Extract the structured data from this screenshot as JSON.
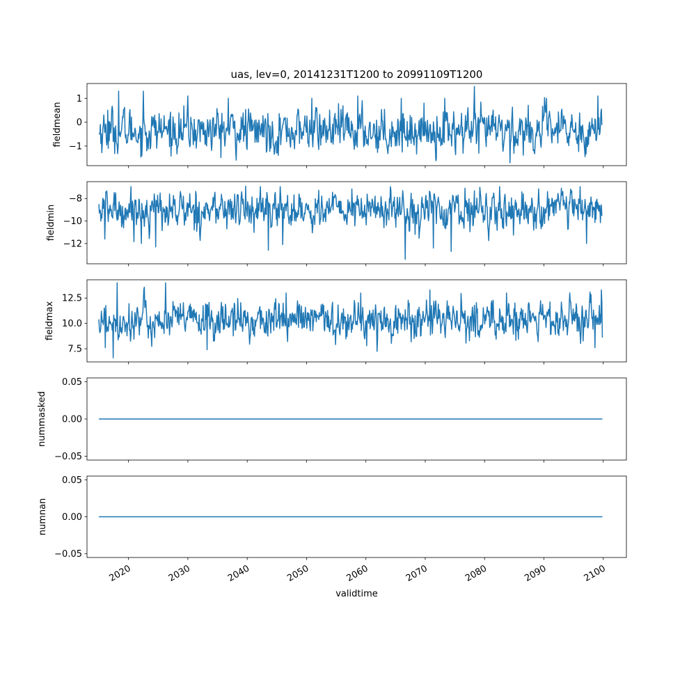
{
  "figure": {
    "title": "uas, lev=0, 20141231T1200 to 20991109T1200",
    "xlabel": "validtime"
  },
  "colors": {
    "line": "#1f77b4",
    "axes": "#000000",
    "background": "#ffffff"
  },
  "chart_data": [
    {
      "type": "line",
      "panel": "fieldmean",
      "ylabel": "fieldmean",
      "x_range": [
        "2014-12-31",
        "2099-11-09"
      ],
      "xlim_years": [
        2013.0,
        2103.9
      ],
      "ylim": [
        -1.82,
        1.62
      ],
      "yticks": [
        1,
        0,
        -1
      ],
      "ytick_labels": [
        "1",
        "0",
        "−1"
      ],
      "xticks": [
        2020,
        2030,
        2040,
        2050,
        2060,
        2070,
        2080,
        2090,
        2100
      ],
      "xtick_labels": [
        "2020",
        "2030",
        "2040",
        "2050",
        "2060",
        "2070",
        "2080",
        "2090",
        "2100"
      ],
      "xtick_labels_visible": false,
      "series": [
        {
          "summary": "noisy monthly series, mostly between -1.2 and 0.8",
          "x": [
            2015.0,
            2016.5,
            2016.6,
            2018.3,
            2022.5,
            2023.1,
            2030.0,
            2036.8,
            2045.0,
            2050.9,
            2058.6,
            2066.0,
            2073.3,
            2076.4,
            2078.3,
            2079.0,
            2084.3,
            2090.4,
            2099.1,
            2099.8
          ],
          "y": [
            -0.5,
            0.5,
            -1.1,
            1.3,
            1.3,
            -1.2,
            1.1,
            1.0,
            -1.3,
            1.0,
            1.1,
            1.0,
            1.0,
            -1.3,
            1.5,
            -1.3,
            -1.7,
            1.0,
            1.1,
            -0.1
          ]
        }
      ]
    },
    {
      "type": "line",
      "panel": "fieldmin",
      "ylabel": "fieldmin",
      "x_range": [
        "2014-12-31",
        "2099-11-09"
      ],
      "xlim_years": [
        2013.0,
        2103.9
      ],
      "ylim": [
        -13.8,
        -6.5
      ],
      "yticks": [
        -8,
        -10,
        -12
      ],
      "ytick_labels": [
        "−8",
        "−10",
        "−12"
      ],
      "xticks": [
        2020,
        2030,
        2040,
        2050,
        2060,
        2070,
        2080,
        2090,
        2100
      ],
      "xtick_labels": [
        "2020",
        "2030",
        "2040",
        "2050",
        "2060",
        "2070",
        "2080",
        "2090",
        "2100"
      ],
      "xtick_labels_visible": false,
      "series": [
        {
          "summary": "noisy monthly series, mostly between -10 and -8",
          "x": [
            2015.0,
            2016.0,
            2017.8,
            2022.2,
            2024.6,
            2039.7,
            2043.6,
            2046.0,
            2066.2,
            2066.6,
            2071.4,
            2074.4,
            2097.2,
            2099.6,
            2099.8
          ],
          "y": [
            -8.5,
            -11.6,
            -7.5,
            -12.0,
            -12.3,
            -6.9,
            -12.6,
            -12.1,
            -7.3,
            -13.4,
            -12.4,
            -12.7,
            -12.0,
            -9.2,
            -9.5
          ]
        }
      ]
    },
    {
      "type": "line",
      "panel": "fieldmax",
      "ylabel": "fieldmax",
      "x_range": [
        "2014-12-31",
        "2099-11-09"
      ],
      "xlim_years": [
        2013.0,
        2103.9
      ],
      "ylim": [
        6.2,
        14.3
      ],
      "yticks": [
        12.5,
        10.0,
        7.5
      ],
      "ytick_labels": [
        "12.5",
        "10.0",
        "7.5"
      ],
      "xticks": [
        2020,
        2030,
        2040,
        2050,
        2060,
        2070,
        2080,
        2090,
        2100
      ],
      "xtick_labels": [
        "2020",
        "2030",
        "2040",
        "2050",
        "2060",
        "2070",
        "2080",
        "2090",
        "2100"
      ],
      "xtick_labels_visible": false,
      "series": [
        {
          "summary": "noisy monthly series, mostly between 9 and 12",
          "x": [
            2015.0,
            2016.1,
            2017.4,
            2018.1,
            2026.2,
            2033.2,
            2046.6,
            2059.1,
            2060.1,
            2070.8,
            2083.7,
            2098.6,
            2099.7,
            2099.9
          ],
          "y": [
            10.4,
            7.6,
            6.6,
            14.0,
            14.0,
            7.4,
            13.0,
            13.0,
            7.8,
            13.3,
            13.0,
            7.6,
            13.3,
            8.6
          ]
        }
      ]
    },
    {
      "type": "line",
      "panel": "nummasked",
      "ylabel": "nummasked",
      "x_range": [
        "2014-12-31",
        "2099-11-09"
      ],
      "xlim_years": [
        2013.0,
        2103.9
      ],
      "ylim": [
        -0.055,
        0.055
      ],
      "yticks": [
        0.05,
        0.0,
        -0.05
      ],
      "ytick_labels": [
        "0.05",
        "0.00",
        "−0.05"
      ],
      "xticks": [
        2020,
        2030,
        2040,
        2050,
        2060,
        2070,
        2080,
        2090,
        2100
      ],
      "xtick_labels": [
        "2020",
        "2030",
        "2040",
        "2050",
        "2060",
        "2070",
        "2080",
        "2090",
        "2100"
      ],
      "xtick_labels_visible": false,
      "series": [
        {
          "x": [
            2015.0,
            2099.85
          ],
          "y": [
            0.0,
            0.0
          ]
        }
      ]
    },
    {
      "type": "line",
      "panel": "numnan",
      "ylabel": "numnan",
      "x_range": [
        "2014-12-31",
        "2099-11-09"
      ],
      "xlim_years": [
        2013.0,
        2103.9
      ],
      "ylim": [
        -0.055,
        0.055
      ],
      "yticks": [
        0.05,
        0.0,
        -0.05
      ],
      "ytick_labels": [
        "0.05",
        "0.00",
        "−0.05"
      ],
      "xticks": [
        2020,
        2030,
        2040,
        2050,
        2060,
        2070,
        2080,
        2090,
        2100
      ],
      "xtick_labels": [
        "2020",
        "2030",
        "2040",
        "2050",
        "2060",
        "2070",
        "2080",
        "2090",
        "2100"
      ],
      "xtick_labels_visible": true,
      "series": [
        {
          "x": [
            2015.0,
            2099.85
          ],
          "y": [
            0.0,
            0.0
          ]
        }
      ]
    }
  ]
}
